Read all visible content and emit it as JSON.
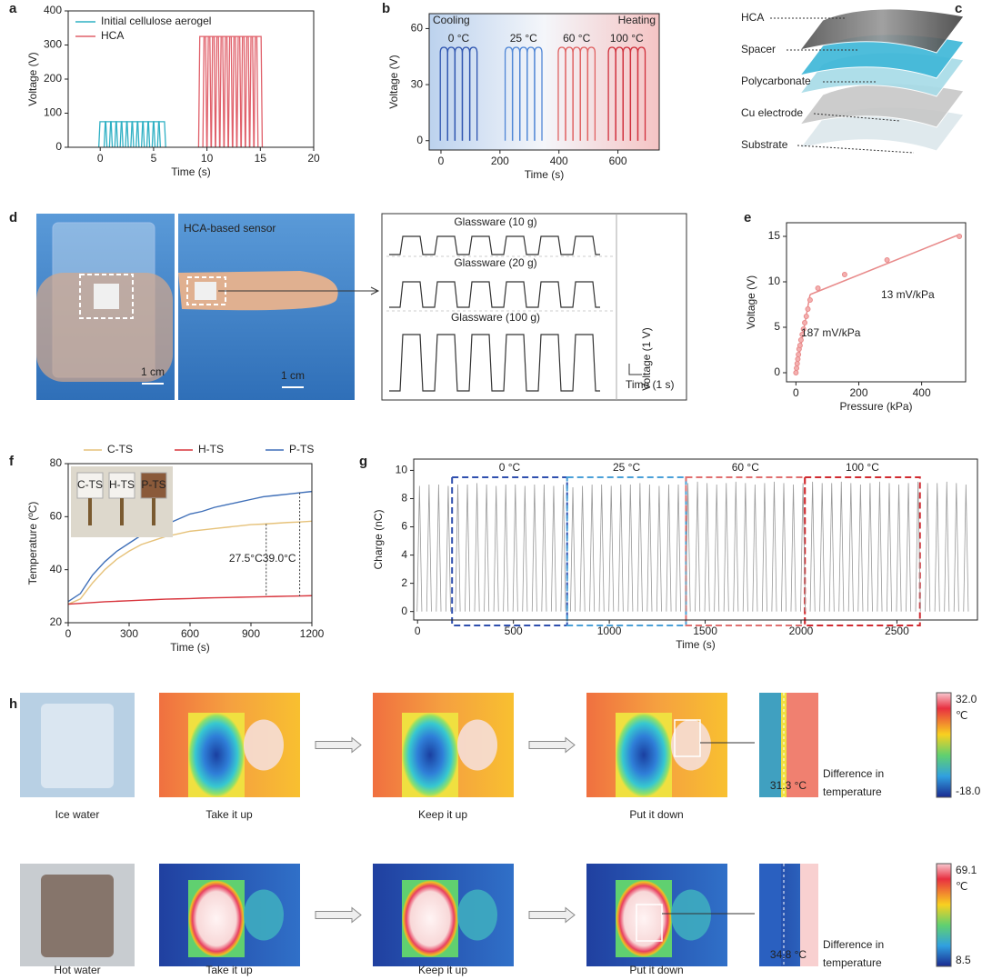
{
  "chart_data": [
    {
      "panel_label": "a",
      "type": "pulse",
      "xlabel": "Time (s)",
      "ylabel": "Voltage (V)",
      "xlim": [
        -3,
        20
      ],
      "ylim": [
        0,
        400
      ],
      "xticks": [
        0,
        5,
        10,
        15,
        20
      ],
      "yticks": [
        0,
        100,
        200,
        300,
        400
      ],
      "legend": "upper left",
      "series": [
        {
          "name": "Initial cellulose aerogel",
          "color": "#2fb0c4",
          "x": [
            0.25,
            0.75,
            1.25,
            1.75,
            2.25,
            2.75,
            3.25,
            3.75,
            4.25,
            4.75,
            5.25,
            5.75
          ],
          "values": [
            75,
            75,
            75,
            75,
            75,
            75,
            75,
            75,
            75,
            75,
            75,
            75
          ]
        },
        {
          "name": "HCA",
          "color": "#e0606a",
          "x": [
            9.6,
            10.0,
            10.4,
            10.8,
            11.2,
            11.6,
            12.0,
            12.4,
            12.8,
            13.2,
            13.6,
            14.0,
            14.4,
            14.8
          ],
          "values": [
            325,
            325,
            325,
            325,
            325,
            325,
            325,
            325,
            325,
            325,
            325,
            325,
            325,
            325
          ]
        }
      ]
    },
    {
      "panel_label": "b",
      "type": "pulse",
      "xlabel": "Time (s)",
      "ylabel": "Voltage (V)",
      "xlim": [
        -40,
        740
      ],
      "ylim": [
        -5,
        68
      ],
      "xticks": [
        0,
        200,
        400,
        600
      ],
      "yticks": [
        0,
        30,
        60
      ],
      "annotations": [
        "Cooling",
        "Heating"
      ],
      "series": [
        {
          "name": "0 °C",
          "color": "#2f55b0",
          "x": [
            10,
            35,
            60,
            85,
            110
          ],
          "values": [
            50,
            50,
            50,
            50,
            50
          ]
        },
        {
          "name": "25 °C",
          "color": "#4f86d6",
          "x": [
            230,
            255,
            280,
            305,
            330
          ],
          "values": [
            50,
            50,
            50,
            50,
            50
          ]
        },
        {
          "name": "60 °C",
          "color": "#e06262",
          "x": [
            410,
            435,
            460,
            485,
            510
          ],
          "values": [
            50,
            50,
            50,
            50,
            50
          ]
        },
        {
          "name": "100 °C",
          "color": "#d0303c",
          "x": [
            580,
            605,
            630,
            655,
            680
          ],
          "values": [
            50,
            50,
            50,
            50,
            50
          ]
        }
      ]
    },
    {
      "panel_label": "e",
      "type": "scatter",
      "xlabel": "Pressure (kPa)",
      "ylabel": "Voltage (V)",
      "xlim": [
        -30,
        540
      ],
      "ylim": [
        -1,
        16.5
      ],
      "xticks": [
        0,
        200,
        400
      ],
      "yticks": [
        0,
        5,
        10,
        15
      ],
      "color": "#e88a8a",
      "x": [
        0,
        2,
        4,
        6,
        8,
        10,
        13,
        16,
        20,
        24,
        28,
        33,
        38,
        45,
        70,
        155,
        290,
        520
      ],
      "values": [
        0,
        0.5,
        1,
        1.5,
        2,
        2.6,
        3,
        3.6,
        4.2,
        4.8,
        5.5,
        6.2,
        7,
        8,
        9.3,
        10.8,
        12.4,
        15
      ],
      "fits": [
        {
          "x": [
            0,
            45
          ],
          "values": [
            0,
            8.6
          ]
        },
        {
          "x": [
            45,
            520
          ],
          "values": [
            8.6,
            15.2
          ]
        }
      ],
      "annotations": [
        "187 mV/kPa",
        "13 mV/kPa"
      ]
    },
    {
      "panel_label": "f",
      "type": "line",
      "xlabel": "Time (s)",
      "ylabel": "Temperature (ºC)",
      "xlim": [
        0,
        1200
      ],
      "ylim": [
        20,
        80
      ],
      "xticks": [
        0,
        300,
        600,
        900,
        1200
      ],
      "yticks": [
        20,
        40,
        60,
        80
      ],
      "legend": "top",
      "x": [
        0,
        60,
        120,
        180,
        240,
        300,
        360,
        420,
        480,
        540,
        600,
        660,
        720,
        780,
        840,
        900,
        960,
        1020,
        1080,
        1140,
        1200
      ],
      "series": [
        {
          "name": "C-TS",
          "color": "#e6c27a",
          "values": [
            27,
            29,
            35,
            40,
            44,
            47,
            49.5,
            51,
            52.5,
            53.5,
            54.5,
            55,
            55.5,
            56,
            56.5,
            57,
            57.2,
            57.5,
            57.8,
            58,
            58.3
          ]
        },
        {
          "name": "H-TS",
          "color": "#d8343c",
          "values": [
            27,
            27.3,
            27.6,
            27.9,
            28.1,
            28.3,
            28.5,
            28.7,
            28.9,
            29,
            29.1,
            29.3,
            29.4,
            29.5,
            29.6,
            29.7,
            29.8,
            29.9,
            30,
            30.1,
            30.2
          ]
        },
        {
          "name": "P-TS",
          "color": "#3f6fb8",
          "values": [
            28,
            31,
            38,
            43,
            47,
            50,
            53,
            55,
            57,
            59,
            61,
            62,
            63.5,
            64.5,
            65.5,
            66.5,
            67.5,
            68,
            68.5,
            69,
            69.5
          ]
        }
      ],
      "annotations": [
        "27.5°C",
        "39.0°C"
      ],
      "inset_labels": [
        "C-TS",
        "H-TS",
        "P-TS"
      ]
    },
    {
      "panel_label": "g",
      "type": "pulse",
      "xlabel": "Time (s)",
      "ylabel": "Charge (nC)",
      "xlim": [
        -20,
        2920
      ],
      "ylim": [
        -0.6,
        10.8
      ],
      "xticks": [
        0,
        500,
        1000,
        1500,
        2000,
        2500
      ],
      "yticks": [
        0,
        2,
        4,
        6,
        8,
        10
      ],
      "series": [
        {
          "color": "#999999",
          "x": [
            10,
            60,
            110,
            160,
            210,
            260,
            310,
            360,
            410,
            460,
            510,
            560,
            610,
            660,
            710,
            760,
            810,
            860,
            910,
            960,
            1010,
            1060,
            1110,
            1160,
            1210,
            1260,
            1310,
            1360,
            1410,
            1460,
            1510,
            1560,
            1610,
            1660,
            1710,
            1760,
            1810,
            1860,
            1910,
            1960,
            2010,
            2060,
            2110,
            2160,
            2210,
            2260,
            2310,
            2360,
            2410,
            2460,
            2510,
            2560,
            2610,
            2660,
            2710,
            2760,
            2810,
            2860
          ],
          "values": [
            8.9,
            9.0,
            9.0,
            8.9,
            9.0,
            9.0,
            9.1,
            9.0,
            8.9,
            9.0,
            9.0,
            8.9,
            9.0,
            9.0,
            8.9,
            9.0,
            8.8,
            8.9,
            9.0,
            9.0,
            8.9,
            9.0,
            9.0,
            9.1,
            9.0,
            8.9,
            9.0,
            9.0,
            9.1,
            9.2,
            9.1,
            9.0,
            9.1,
            9.2,
            9.1,
            9.0,
            9.1,
            9.2,
            9.1,
            9.0,
            9.1,
            9.2,
            9.1,
            9.1,
            9.2,
            9.1,
            9.0,
            9.1,
            9.2,
            9.1,
            9.0,
            9.1,
            9.2,
            9.1,
            9.1,
            9.2,
            9.1,
            9.0
          ]
        }
      ],
      "regions": [
        {
          "name": "0 °C",
          "color": "#2f4fae",
          "x": [
            180,
            780
          ]
        },
        {
          "name": "25 °C",
          "color": "#4aa0d8",
          "x": [
            780,
            1400
          ]
        },
        {
          "name": "60 °C",
          "color": "#e07070",
          "x": [
            1400,
            2020
          ]
        },
        {
          "name": "100 °C",
          "color": "#d02a30",
          "x": [
            2020,
            2620
          ]
        }
      ]
    }
  ],
  "panel_c": {
    "panel_label": "c",
    "layers": [
      "HCA",
      "Spacer",
      "Polycarbonate",
      "Cu electrode",
      "Substrate"
    ]
  },
  "panel_d": {
    "panel_label": "d",
    "photo_label": "HCA-based sensor",
    "scale_bars": [
      "1 cm",
      "1 cm"
    ],
    "traces": [
      "Glassware (10 g)",
      "Glassware (20 g)",
      "Glassware (100 g)"
    ],
    "scale_y": "Voltage  (1 V)",
    "scale_x": "Time (1 s)"
  },
  "panel_h": {
    "panel_label": "h",
    "rows": [
      {
        "caption": "Ice water",
        "steps": [
          "Take it up",
          "Keep it up",
          "Put it down"
        ],
        "reading": "31.3 °C",
        "note": [
          "Difference in",
          "temperature"
        ],
        "scale": [
          "32.0",
          "℃",
          "-18.0"
        ]
      },
      {
        "caption": "Hot water",
        "steps": [
          "Take it up",
          "Keep it up",
          "Put it down"
        ],
        "reading": "34.8 °C",
        "note": [
          "Difference in",
          "temperature"
        ],
        "scale": [
          "69.1",
          "℃",
          "8.5"
        ]
      }
    ]
  }
}
